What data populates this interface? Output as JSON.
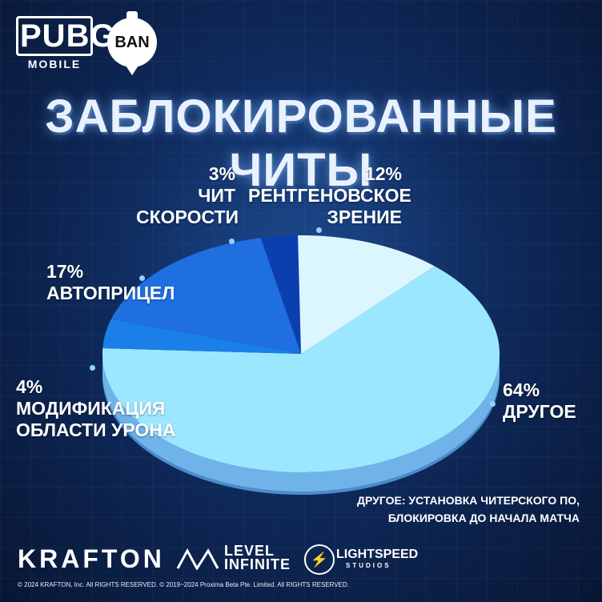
{
  "header": {
    "logo_main": "PUBG",
    "logo_sub": "MOBILE",
    "badge": "BAN"
  },
  "title": "ЗАБЛОКИРОВАННЫЕ ЧИТЫ",
  "chart_data": {
    "type": "pie",
    "slices": [
      {
        "label": "ДРУГОЕ",
        "label_lines": [
          "ДРУГОЕ"
        ],
        "value": 64,
        "value_text": "64%",
        "color": "#9be7ff"
      },
      {
        "label": "МОДИФИКАЦИЯ ОБЛАСТИ УРОНА",
        "label_lines": [
          "МОДИФИКАЦИЯ",
          "ОБЛАСТИ УРОНА"
        ],
        "value": 4,
        "value_text": "4%",
        "color": "#1a7fe8"
      },
      {
        "label": "АВТОПРИЦЕЛ",
        "label_lines": [
          "АВТОПРИЦЕЛ"
        ],
        "value": 17,
        "value_text": "17%",
        "color": "#1f6fe0"
      },
      {
        "label": "ЧИТ СКОРОСТИ",
        "label_lines": [
          "ЧИТ",
          "СКОРОСТИ"
        ],
        "value": 3,
        "value_text": "3%",
        "color": "#0b3fb0"
      },
      {
        "label": "РЕНТГЕНОВСКОЕ ЗРЕНИЕ",
        "label_lines": [
          "РЕНТГЕНОВСКОЕ",
          "ЗРЕНИЕ"
        ],
        "value": 12,
        "value_text": "12%",
        "color": "#dcf6ff"
      }
    ],
    "title": "ЗАБЛОКИРОВАННЫЕ ЧИТЫ"
  },
  "note": {
    "line1": "ДРУГОЕ: УСТАНОВКА ЧИТЕРСКОГО ПО,",
    "line2": "БЛОКИРОВКА ДО НАЧАЛА МАТЧА"
  },
  "footer": {
    "krafton": "KRAFTON",
    "level_line1": "LEVEL",
    "level_line2": "INFINITE",
    "lightspeed": "LIGHTSPEED",
    "lightspeed_sub": "STUDIOS",
    "copyright": "© 2024 KRAFTON, Inc. All RIGHTS RESERVED.     © 2019~2024 Proxima Beta Pte. Limited. All RIGHTS RESERVED."
  }
}
